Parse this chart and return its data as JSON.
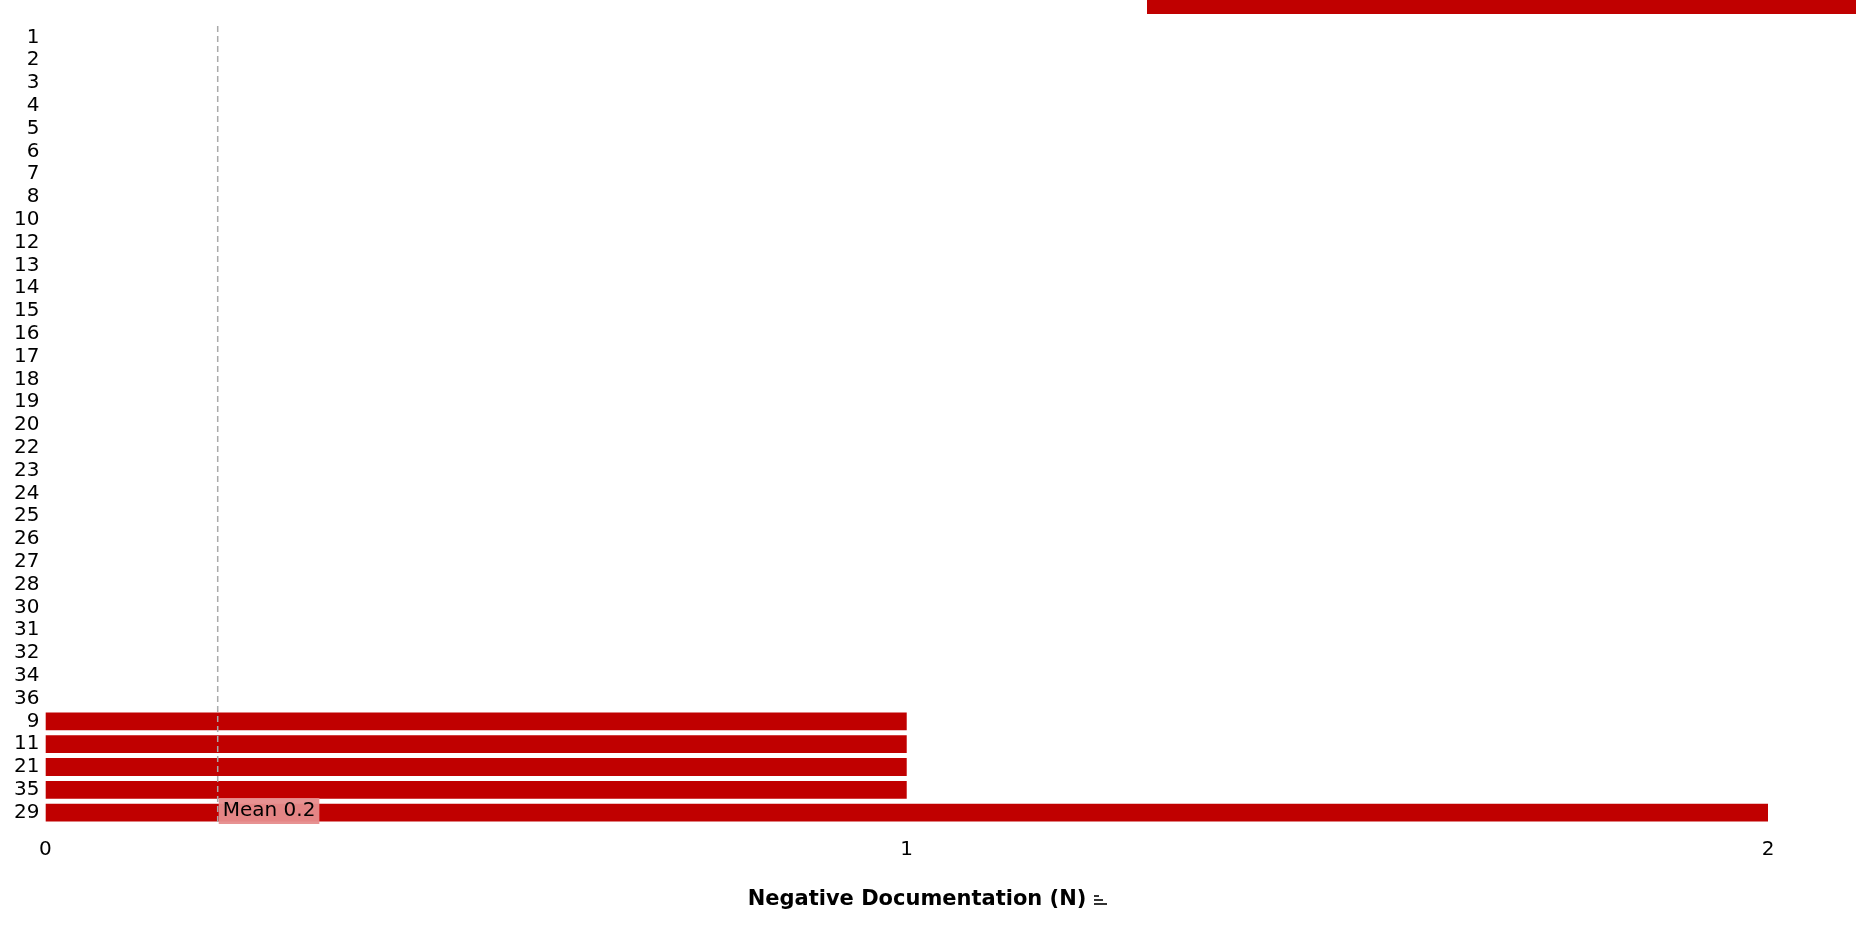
{
  "chart_data": {
    "type": "bar",
    "orientation": "horizontal",
    "xlabel": "Negative Documentation (N)",
    "categories": [
      "1",
      "2",
      "3",
      "4",
      "5",
      "6",
      "7",
      "8",
      "10",
      "12",
      "13",
      "14",
      "15",
      "16",
      "17",
      "18",
      "19",
      "20",
      "22",
      "23",
      "24",
      "25",
      "26",
      "27",
      "28",
      "30",
      "31",
      "32",
      "34",
      "36",
      "9",
      "11",
      "21",
      "35",
      "29"
    ],
    "values": [
      0,
      0,
      0,
      0,
      0,
      0,
      0,
      0,
      0,
      0,
      0,
      0,
      0,
      0,
      0,
      0,
      0,
      0,
      0,
      0,
      0,
      0,
      0,
      0,
      0,
      0,
      0,
      0,
      0,
      0,
      1,
      1,
      1,
      1,
      2
    ],
    "color": "#c00000",
    "xlim": [
      0,
      2
    ],
    "xticks": [
      0,
      1,
      2
    ],
    "grid": false,
    "legend": false,
    "ref_lines": [
      {
        "axis": "x",
        "value": 0.2,
        "label": "Mean 0.2",
        "color": "#aaaaaa",
        "line_style": "dashed"
      }
    ]
  }
}
